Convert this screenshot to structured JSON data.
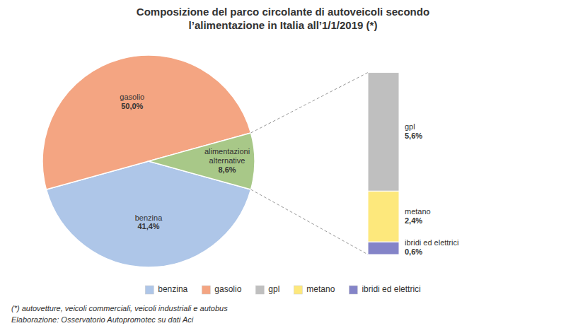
{
  "chart_data": [
    {
      "type": "pie",
      "title": "Composizione del parco circolante di autoveicoli secondo\nl’alimentazione in Italia all’1/1/2019 (*)",
      "categories": [
        "benzina",
        "gasolio",
        "alimentazioni\nalternative"
      ],
      "values": [
        41.4,
        50.0,
        8.6
      ],
      "value_labels": [
        "41,4%",
        "50,0%",
        "8,6%"
      ],
      "colors": [
        "#aec6e8",
        "#f4a582",
        "#a8c888"
      ],
      "data_labels": true,
      "legend": "bottom",
      "annotations": [
        "(*) autovetture, veicoli commerciali, veicoli industriali e autobus",
        "Elaborazione: Osservatorio Autopromotec su dati Aci"
      ]
    },
    {
      "type": "bar",
      "stacked": true,
      "categories": [
        null
      ],
      "series": [
        {
          "name": "ibridi ed elettrici",
          "color": "#8484c8",
          "values": [
            0.6
          ],
          "value_labels": [
            "0,6%"
          ]
        },
        {
          "name": "metano",
          "color": "#fde87c",
          "values": [
            2.4
          ],
          "value_labels": [
            "2,4%"
          ]
        },
        {
          "name": "gpl",
          "color": "#bfbfbf",
          "values": [
            5.6
          ],
          "value_labels": [
            "5,6%"
          ]
        }
      ],
      "ylim": [
        0,
        8.686
      ],
      "tick_labels": false,
      "data_labels": true
    }
  ]
}
